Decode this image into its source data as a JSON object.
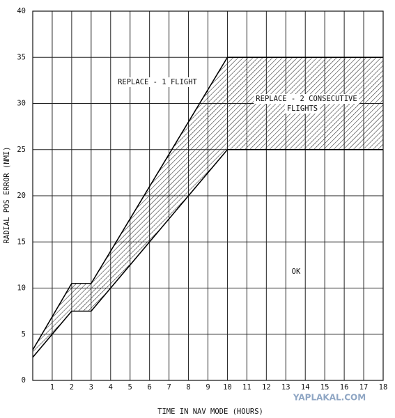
{
  "chart_data": {
    "type": "line",
    "x_label": "TIME IN NAV MODE (HOURS)",
    "y_label": "RADIAL POS ERROR (NMI)",
    "x": [
      0,
      2,
      3,
      10,
      18
    ],
    "series": [
      {
        "color": "#000000",
        "values": [
          3.3,
          10.5,
          10.5,
          35,
          35
        ]
      },
      {
        "color": "#000000",
        "values": [
          2.5,
          7.5,
          7.5,
          25,
          25
        ]
      }
    ],
    "xlim": [
      0,
      18
    ],
    "xticks": [
      1,
      2,
      3,
      4,
      5,
      6,
      7,
      8,
      9,
      10,
      11,
      12,
      13,
      14,
      15,
      16,
      17,
      18
    ],
    "ylim": [
      0,
      40
    ],
    "yticks": [
      0,
      5,
      10,
      15,
      20,
      25,
      30,
      35,
      40
    ],
    "grid": true,
    "band_fill": "hatch",
    "annotations": [
      [
        "REPLACE - 1 FLIGHT"
      ],
      [
        "REPLACE - 2 CONSECUTIVE",
        "FLIGHTS"
      ],
      [
        "OK"
      ]
    ],
    "watermark": "YAPLAKAL.COM"
  }
}
